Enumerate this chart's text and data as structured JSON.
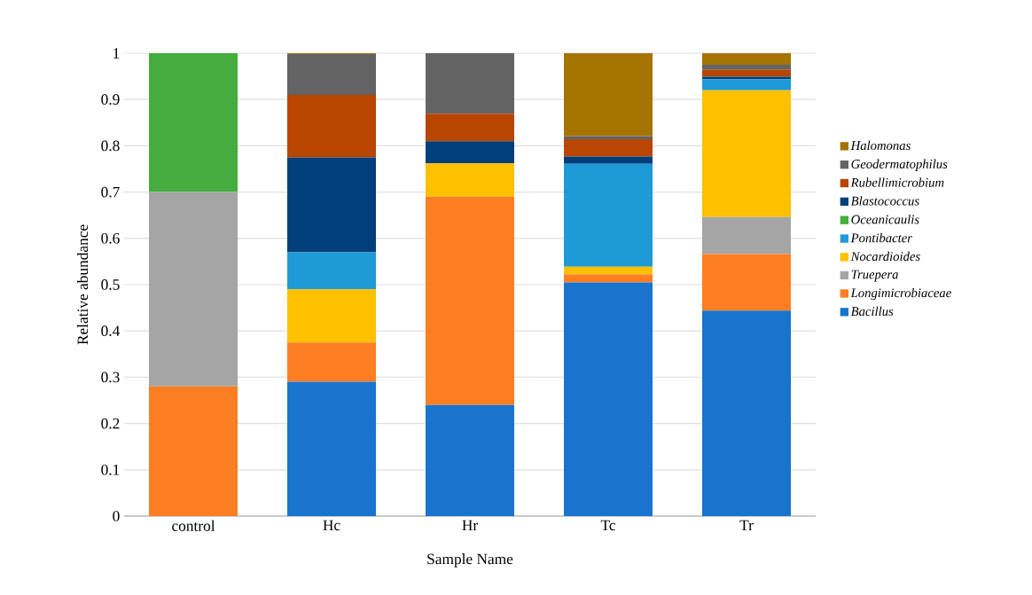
{
  "chart_data": {
    "type": "bar",
    "stacked": true,
    "xlabel": "Sample Name",
    "ylabel": "Relative abundance",
    "categories": [
      "control",
      "Hc",
      "Hr",
      "Tc",
      "Tr"
    ],
    "ylim": [
      0,
      1
    ],
    "yticks": [
      0,
      0.1,
      0.2,
      0.3,
      0.4,
      0.5,
      0.6,
      0.7,
      0.8,
      0.9,
      1
    ],
    "grid": "y",
    "legend": "right",
    "series": [
      {
        "name": "Bacillus",
        "color": "#1874cd",
        "values": [
          0,
          0.29,
          0.24,
          0.505,
          0.444
        ]
      },
      {
        "name": "Longimicrobiaceae",
        "color": "#fd7e23",
        "values": [
          0.28,
          0.085,
          0.45,
          0.017,
          0.122
        ]
      },
      {
        "name": "Truepera",
        "color": "#a5a5a5",
        "values": [
          0.42,
          0,
          null,
          0,
          0.08
        ]
      },
      {
        "name": "Nocardioides",
        "color": "#ffc000",
        "values": [
          0,
          0.115,
          0.072,
          0.017,
          0.274
        ]
      },
      {
        "name": "Pontibacter",
        "color": "#1e9ad6",
        "values": [
          0,
          0.08,
          0,
          0.222,
          0.024
        ]
      },
      {
        "name": "Oceanicaulis",
        "color": "#45ad3e",
        "values": [
          0.3,
          0,
          0,
          0,
          0
        ]
      },
      {
        "name": "Blastococcus",
        "color": "#003f7a",
        "values": [
          0,
          0.205,
          0.048,
          0.016,
          0.005
        ]
      },
      {
        "name": "Rubellimicrobium",
        "color": "#b84500",
        "values": [
          0,
          0.135,
          0.059,
          0.037,
          0.015
        ]
      },
      {
        "name": "Geodermatophilus",
        "color": "#636363",
        "values": [
          0,
          0.088,
          0.131,
          0.007,
          0.011
        ]
      },
      {
        "name": "Halomonas",
        "color": "#a57400",
        "values": [
          0,
          0.002,
          0,
          0.179,
          0.025
        ]
      }
    ]
  }
}
